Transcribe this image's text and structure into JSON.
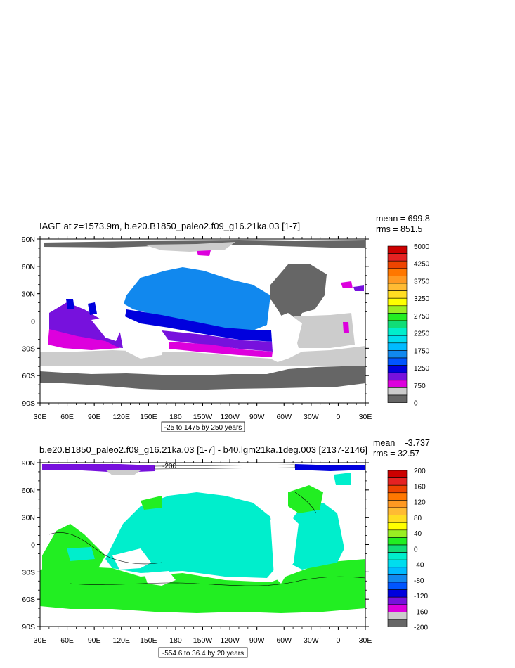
{
  "panels": [
    {
      "title": "IAGE at z=1573.9m, b.e20.B1850_paleo2.f09_g16.21ka.03 [1-7]",
      "mean_label": "mean = 699.8",
      "rms_label": "rms = 851.5",
      "contour_info": "-25 to 1475 by 250 years",
      "lat_ticks": [
        "90N",
        "60N",
        "30N",
        "0",
        "30S",
        "60S",
        "90S"
      ],
      "lon_ticks": [
        "30E",
        "60E",
        "90E",
        "120E",
        "150E",
        "180",
        "150W",
        "120W",
        "90W",
        "60W",
        "30W",
        "0",
        "30E"
      ],
      "colorbar": {
        "labels": [
          "5000",
          "4250",
          "3750",
          "3250",
          "2750",
          "2250",
          "1750",
          "1250",
          "750",
          "0"
        ],
        "colors": [
          "#cc0000",
          "#e52222",
          "#ee4400",
          "#ff7700",
          "#ff9922",
          "#ffbb33",
          "#ffdd22",
          "#ffff00",
          "#99ee22",
          "#22ee22",
          "#11dd77",
          "#00eecc",
          "#00ddee",
          "#00bbff",
          "#1188ee",
          "#0055ff",
          "#0000dd",
          "#7711dd",
          "#dd00dd",
          "#cccccc",
          "#666666"
        ]
      },
      "map_annotations": []
    },
    {
      "title": "b.e20.B1850_paleo2.f09_g16.21ka.03 [1-7] - b40.lgm21ka.1deg.003 [2137-2146]",
      "mean_label": "mean = -3.737",
      "rms_label": "rms = 32.57",
      "contour_info": "-554.6 to 36.4 by 20 years",
      "lat_ticks": [
        "90N",
        "60N",
        "30N",
        "0",
        "30S",
        "60S",
        "90S"
      ],
      "lon_ticks": [
        "30E",
        "60E",
        "90E",
        "120E",
        "150E",
        "180",
        "150W",
        "120W",
        "90W",
        "60W",
        "30W",
        "0",
        "30E"
      ],
      "colorbar": {
        "labels": [
          "200",
          "160",
          "120",
          "80",
          "40",
          "0",
          "-40",
          "-80",
          "-120",
          "-160",
          "-200"
        ],
        "colors": [
          "#cc0000",
          "#e52222",
          "#ee4400",
          "#ff7700",
          "#ff9922",
          "#ffbb33",
          "#ffdd22",
          "#ffff00",
          "#99ee22",
          "#22ee22",
          "#11dd77",
          "#00eecc",
          "#00ddee",
          "#00bbff",
          "#1188ee",
          "#0055ff",
          "#0000dd",
          "#7711dd",
          "#dd00dd",
          "#cccccc",
          "#666666"
        ]
      },
      "map_annotations": [
        "-200"
      ]
    }
  ]
}
